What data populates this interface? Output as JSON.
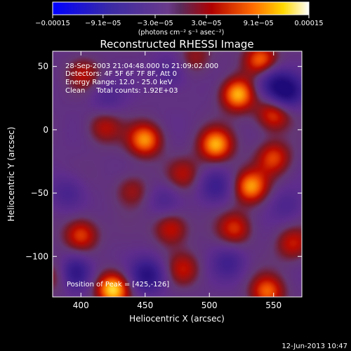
{
  "chart_data": {
    "type": "heatmap",
    "title": "Reconstructed RHESSI Image",
    "xlabel": "Heliocentric X (arcsec)",
    "ylabel": "Heliocentric Y (arcsec)",
    "xlim": [
      378,
      572
    ],
    "ylim": [
      -132,
      62
    ],
    "x_ticks": [
      400,
      450,
      500,
      550
    ],
    "y_ticks": [
      50,
      0,
      -50,
      -100
    ],
    "x_tick_labels": [
      "400",
      "450",
      "500",
      "550"
    ],
    "y_tick_labels": [
      "50",
      "0",
      "−50",
      "−100"
    ],
    "colorbar": {
      "range": [
        -0.00015,
        0.00015
      ],
      "tick_values": [
        -0.00015,
        -9.1e-05,
        -3e-05,
        3e-05,
        9.1e-05,
        0.00015
      ],
      "tick_labels": [
        "−0.00015",
        "−9.1e−05",
        "−3.0e−05",
        "3.0e−05",
        "9.1e−05",
        "0.00015"
      ],
      "units": "(photons cm⁻² s⁻¹ asec⁻²)"
    },
    "annotations": [
      "28-Sep-2003 21:04:48.000 to 21:09:02.000",
      "Detectors: 4F 5F 6F 7F 8F, Att 0",
      "Energy Range: 12.0 - 25.0 keV",
      "Clean     Total counts: 1.92E+03"
    ],
    "peak_label": "Position of Peak = [425,-126]",
    "blobs": [
      {
        "x": 425,
        "y": -126,
        "v": 1.0
      },
      {
        "x": 540,
        "y": 55,
        "v": 0.75
      },
      {
        "x": 522,
        "y": 28,
        "v": 0.9
      },
      {
        "x": 550,
        "y": 12,
        "v": 0.65
      },
      {
        "x": 402,
        "y": 44,
        "v": 0.4
      },
      {
        "x": 488,
        "y": 57,
        "v": 0.35
      },
      {
        "x": 418,
        "y": 2,
        "v": 0.45
      },
      {
        "x": 450,
        "y": -8,
        "v": 0.8
      },
      {
        "x": 505,
        "y": -12,
        "v": 0.85
      },
      {
        "x": 550,
        "y": -22,
        "v": 0.6
      },
      {
        "x": 480,
        "y": -35,
        "v": 0.4
      },
      {
        "x": 440,
        "y": -48,
        "v": 0.4
      },
      {
        "x": 532,
        "y": -45,
        "v": 0.8
      },
      {
        "x": 400,
        "y": -83,
        "v": 0.65
      },
      {
        "x": 470,
        "y": -78,
        "v": 0.55
      },
      {
        "x": 520,
        "y": -78,
        "v": 0.55
      },
      {
        "x": 565,
        "y": -90,
        "v": 0.5
      },
      {
        "x": 480,
        "y": -110,
        "v": 0.45
      },
      {
        "x": 545,
        "y": -128,
        "v": 0.7
      },
      {
        "x": 380,
        "y": -115,
        "v": 0.45
      },
      {
        "x": 560,
        "y": 30,
        "v": -0.85
      },
      {
        "x": 548,
        "y": 38,
        "v": -0.55
      },
      {
        "x": 470,
        "y": 45,
        "v": -0.35
      },
      {
        "x": 395,
        "y": -113,
        "v": -0.8
      },
      {
        "x": 452,
        "y": -115,
        "v": -0.75
      },
      {
        "x": 505,
        "y": -45,
        "v": -0.45
      },
      {
        "x": 390,
        "y": -50,
        "v": -0.35
      },
      {
        "x": 420,
        "y": 25,
        "v": -0.3
      },
      {
        "x": 515,
        "y": -105,
        "v": -0.4
      },
      {
        "x": 560,
        "y": -60,
        "v": -0.3
      },
      {
        "x": 465,
        "y": -55,
        "v": -0.3
      }
    ]
  },
  "footer": {
    "date": "12-Jun-2013 10:47"
  }
}
